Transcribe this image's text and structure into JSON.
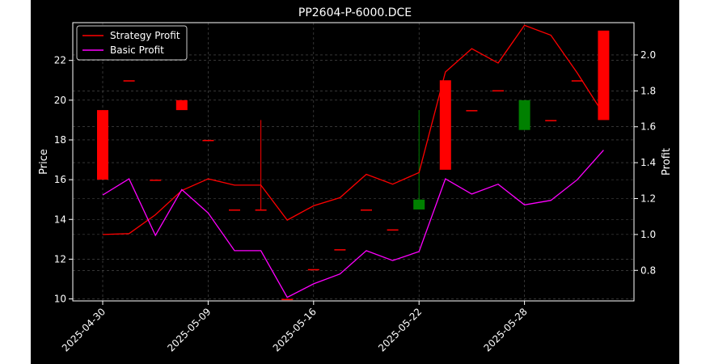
{
  "chart_data": {
    "type": "candlestick+line",
    "title": "PP2604-P-6000.DCE",
    "xlabel": "",
    "ylabel_left": "Price",
    "ylabel_right": "Profit",
    "ylim_left": [
      9.9,
      23.9
    ],
    "ylim_right": [
      0.63,
      2.18
    ],
    "yticks_left": [
      10,
      12,
      14,
      16,
      18,
      20,
      22
    ],
    "yticks_right": [
      0.8,
      1.0,
      1.2,
      1.4,
      1.6,
      1.8,
      2.0
    ],
    "xtick_labels": [
      "2025-04-30",
      "2025-05-09",
      "2025-05-16",
      "2025-05-22",
      "2025-05-28"
    ],
    "xtick_indices": [
      0,
      4,
      8,
      12,
      16
    ],
    "grid": true,
    "legend_position": "top-left",
    "colors": {
      "background": "#000000",
      "foreground": "#ffffff",
      "up": "#008000",
      "down": "#ff0000",
      "strategy": "#ff0000",
      "basic": "#ff00ff",
      "grid": "#555555"
    },
    "candles": [
      {
        "open": 19.5,
        "close": 16.0,
        "high": 19.5,
        "low": 16.0
      },
      {
        "open": 21.0,
        "close": 21.0,
        "high": 21.0,
        "low": 21.0
      },
      {
        "open": 16.0,
        "close": 16.0,
        "high": 16.0,
        "low": 16.0
      },
      {
        "open": 20.0,
        "close": 19.5,
        "high": 20.0,
        "low": 19.5
      },
      {
        "open": 18.0,
        "close": 18.0,
        "high": 18.0,
        "low": 18.0
      },
      {
        "open": 14.5,
        "close": 14.5,
        "high": 14.5,
        "low": 14.5
      },
      {
        "open": 14.5,
        "close": 14.5,
        "high": 19.0,
        "low": 14.5
      },
      {
        "open": 10.0,
        "close": 10.0,
        "high": 10.0,
        "low": 10.0
      },
      {
        "open": 11.5,
        "close": 11.5,
        "high": 11.5,
        "low": 11.5
      },
      {
        "open": 12.5,
        "close": 12.5,
        "high": 12.5,
        "low": 12.5
      },
      {
        "open": 14.5,
        "close": 14.5,
        "high": 14.5,
        "low": 14.5
      },
      {
        "open": 13.5,
        "close": 13.5,
        "high": 13.5,
        "low": 13.5
      },
      {
        "open": 14.5,
        "close": 15.0,
        "high": 19.5,
        "low": 14.5
      },
      {
        "open": 21.0,
        "close": 16.5,
        "high": 21.0,
        "low": 16.5
      },
      {
        "open": 19.5,
        "close": 19.5,
        "high": 19.5,
        "low": 19.5
      },
      {
        "open": 20.5,
        "close": 20.5,
        "high": 20.5,
        "low": 20.5
      },
      {
        "open": 18.5,
        "close": 20.0,
        "high": 20.0,
        "low": 18.5
      },
      {
        "open": 19.0,
        "close": 19.0,
        "high": 19.0,
        "low": 19.0
      },
      {
        "open": 21.0,
        "close": 21.0,
        "high": 21.0,
        "low": 21.0
      },
      {
        "open": 23.5,
        "close": 19.0,
        "high": 23.5,
        "low": 19.0
      }
    ],
    "series": [
      {
        "name": "Strategy Profit",
        "values": [
          1.0,
          1.005,
          1.11,
          1.245,
          1.31,
          1.275,
          1.275,
          1.08,
          1.16,
          1.205,
          1.335,
          1.28,
          1.345,
          1.905,
          2.035,
          1.955,
          2.165,
          2.11,
          1.9,
          1.67
        ]
      },
      {
        "name": "Basic Profit",
        "values": [
          1.22,
          1.31,
          0.995,
          1.25,
          1.12,
          0.91,
          0.91,
          0.65,
          0.725,
          0.78,
          0.91,
          0.855,
          0.905,
          1.31,
          1.225,
          1.28,
          1.165,
          1.19,
          1.305,
          1.47
        ]
      }
    ]
  }
}
